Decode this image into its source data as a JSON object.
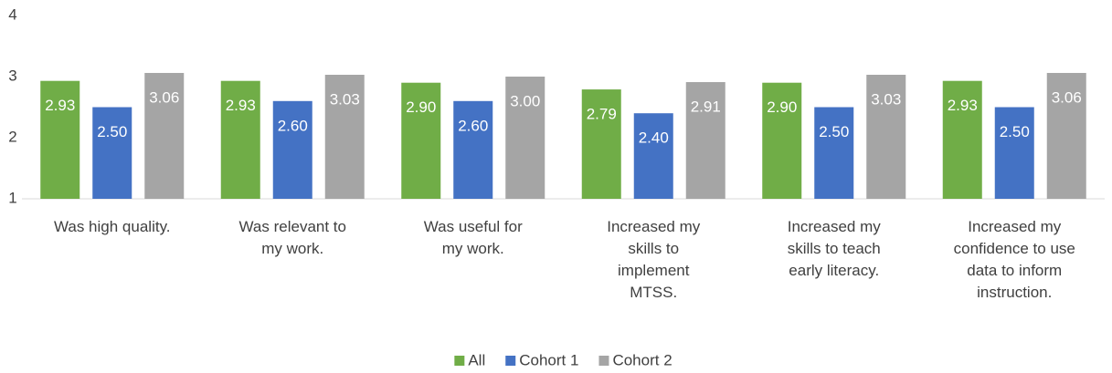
{
  "chart_data": {
    "type": "bar",
    "categories": [
      "Was high quality.",
      "Was relevant to my work.",
      "Was useful for my work.",
      "Increased my skills to implement MTSS.",
      "Increased my skills to teach early literacy.",
      "Increased my confidence to use data to inform instruction."
    ],
    "series": [
      {
        "name": "All",
        "color": "#70ad47",
        "values": [
          2.93,
          2.93,
          2.9,
          2.79,
          2.9,
          2.93
        ],
        "value_labels": [
          "2.93",
          "2.93",
          "2.90",
          "2.79",
          "2.90",
          "2.93"
        ]
      },
      {
        "name": "Cohort 1",
        "color": "#4472c4",
        "values": [
          2.5,
          2.6,
          2.6,
          2.4,
          2.5,
          2.5
        ],
        "value_labels": [
          "2.50",
          "2.60",
          "2.60",
          "2.40",
          "2.50",
          "2.50"
        ]
      },
      {
        "name": "Cohort 2",
        "color": "#a5a5a5",
        "values": [
          3.06,
          3.03,
          3.0,
          2.91,
          3.03,
          3.06
        ],
        "value_labels": [
          "3.06",
          "3.03",
          "3.00",
          "2.91",
          "3.03",
          "3.06"
        ]
      }
    ],
    "ylim": [
      1,
      4
    ],
    "yticks": [
      1,
      2,
      3,
      4
    ],
    "grid": false,
    "legend": "bottom"
  }
}
